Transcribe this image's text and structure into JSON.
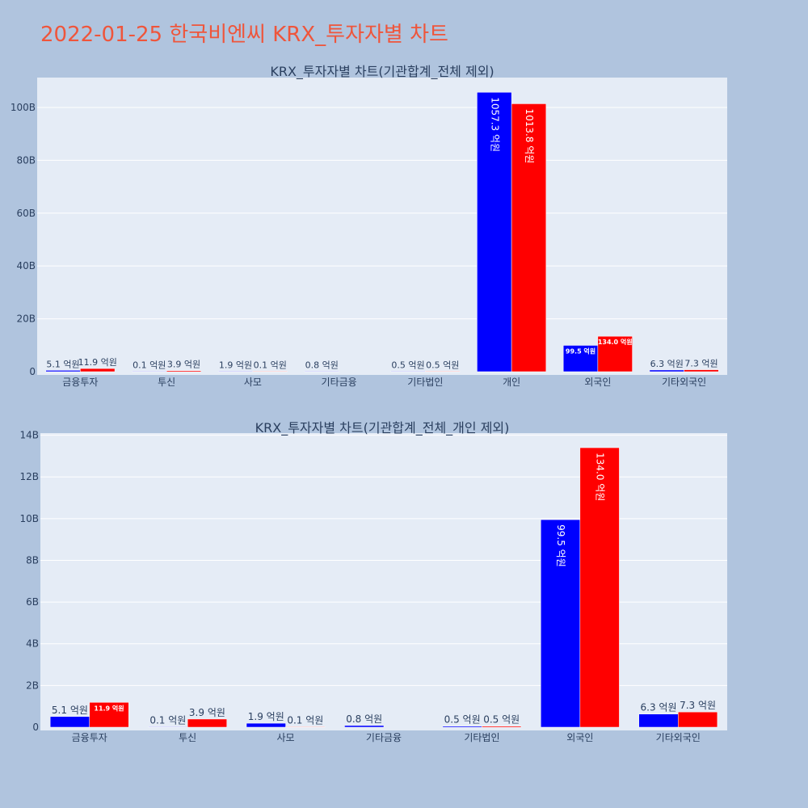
{
  "page_title": "2022-01-25 한국비엔씨 KRX_투자자별 차트",
  "colors": {
    "series1": "#0000ff",
    "series2": "#ff0000",
    "plot_bg": "#e5ecf6",
    "page_bg": "#b0c4de",
    "title": "#ef553b"
  },
  "chart_data": [
    {
      "type": "bar",
      "title": "KRX_투자자별 차트(기관합계_전체 제외)",
      "categories": [
        "금융투자",
        "투신",
        "사모",
        "기타금융",
        "기타법인",
        "개인",
        "외국인",
        "기타외국인"
      ],
      "series": [
        {
          "values": [
            0.51,
            0.01,
            0.19,
            0.08,
            0.05,
            105.73,
            9.95,
            0.63
          ],
          "labels": [
            "5.1 억원",
            "0.1 억원",
            "1.9 억원",
            "0.8 억원",
            "0.5 억원",
            "1057.3 억원",
            "99.5 억원",
            "6.3 억원"
          ]
        },
        {
          "values": [
            1.19,
            0.39,
            0.01,
            null,
            0.05,
            101.38,
            13.4,
            0.73
          ],
          "labels": [
            "11.9 억원",
            "3.9 억원",
            "0.1 억원",
            "",
            "0.5 억원",
            "1013.8 억원",
            "134.0 억원",
            "7.3 억원"
          ]
        }
      ],
      "yticks": [
        0,
        20,
        40,
        60,
        80,
        100
      ],
      "ytick_labels": [
        "0",
        "20B",
        "40B",
        "60B",
        "80B",
        "100B"
      ],
      "ylim": [
        0,
        111.3
      ],
      "grid": true
    },
    {
      "type": "bar",
      "title": "KRX_투자자별 차트(기관합계_전체_개인 제외)",
      "categories": [
        "금융투자",
        "투신",
        "사모",
        "기타금융",
        "기타법인",
        "외국인",
        "기타외국인"
      ],
      "series": [
        {
          "values": [
            0.51,
            0.01,
            0.19,
            0.08,
            0.05,
            9.95,
            0.63
          ],
          "labels": [
            "5.1 억원",
            "0.1 억원",
            "1.9 억원",
            "0.8 억원",
            "0.5 억원",
            "99.5 억원",
            "6.3 억원"
          ]
        },
        {
          "values": [
            1.19,
            0.39,
            0.01,
            null,
            0.05,
            13.4,
            0.73
          ],
          "labels": [
            "11.9 억원",
            "3.9 억원",
            "0.1 억원",
            "",
            "0.5 억원",
            "134.0 억원",
            "7.3 억원"
          ]
        }
      ],
      "yticks": [
        0,
        2,
        4,
        6,
        8,
        10,
        12,
        14
      ],
      "ytick_labels": [
        "0",
        "2B",
        "4B",
        "6B",
        "8B",
        "10B",
        "12B",
        "14B"
      ],
      "ylim": [
        0,
        14.1
      ],
      "grid": true
    }
  ]
}
